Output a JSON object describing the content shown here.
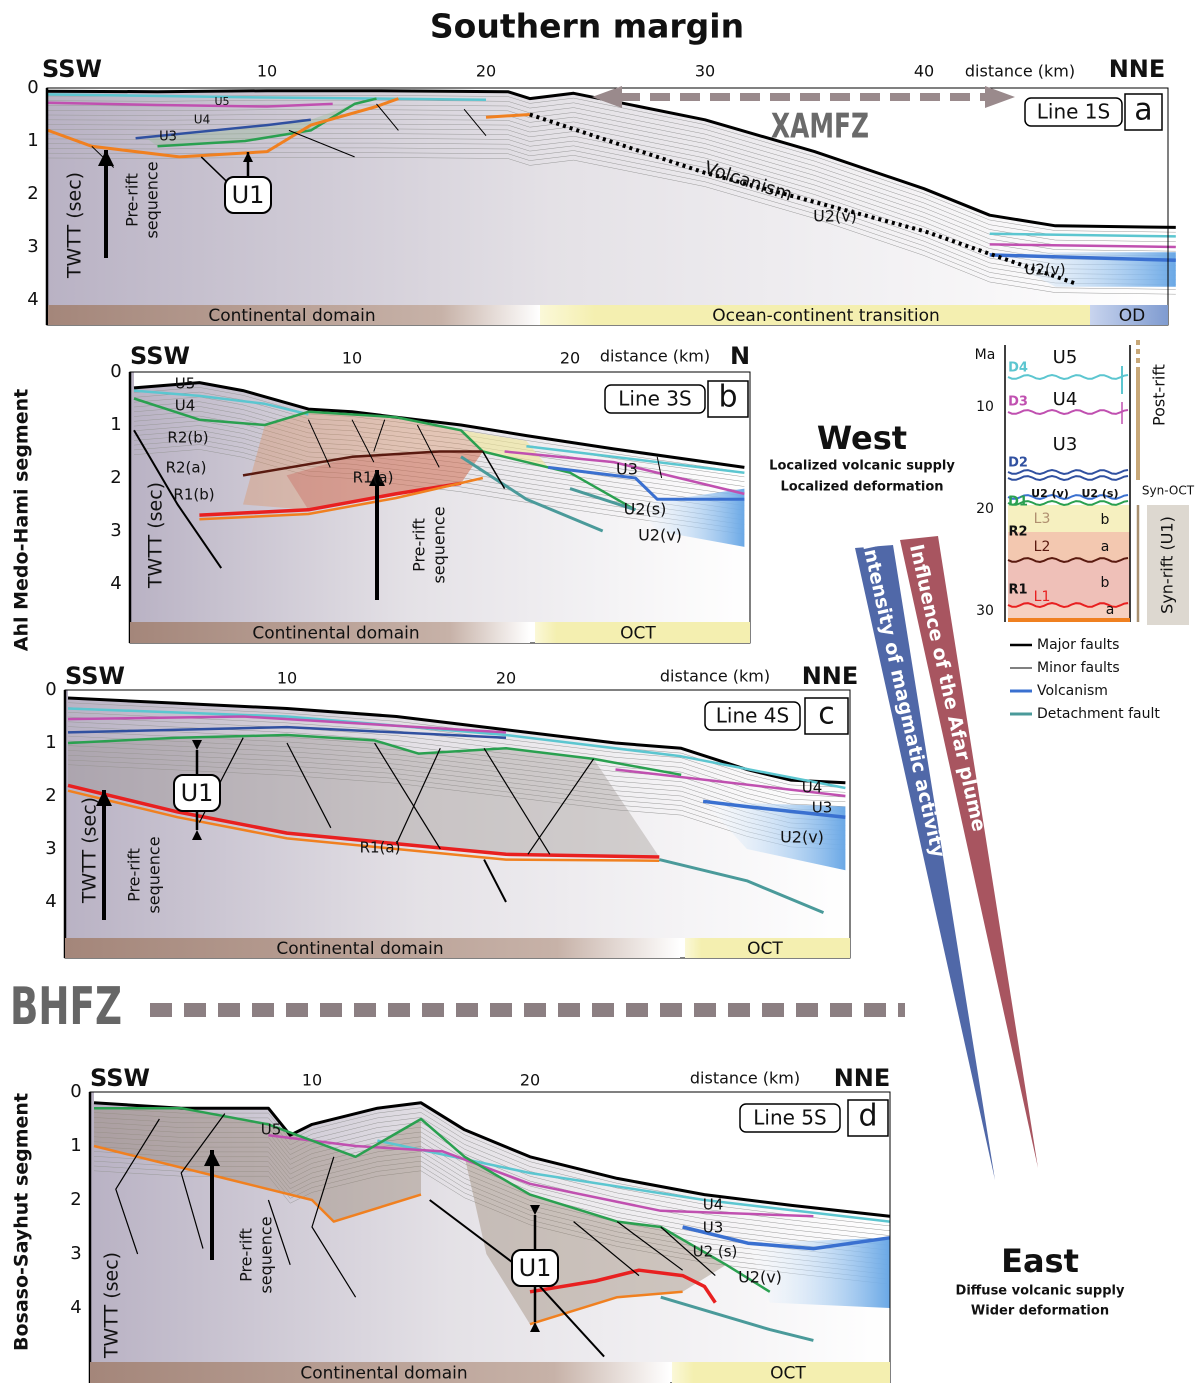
{
  "title": "Southern margin",
  "segments": [
    "Ahl Medo-Hami segment",
    "Bosaso-Sayhut segment"
  ],
  "fault_zone": "BHFZ",
  "panels": [
    {
      "left": "SSW",
      "right": "NNE",
      "distance_label": "distance (km)",
      "distance_ticks": [
        10,
        20,
        30,
        40
      ],
      "depth_ticks": [
        0,
        1,
        2,
        3,
        4
      ],
      "depth_label": "TWTT (sec)",
      "line": "Line 1S",
      "letter": "a",
      "labels": [
        "U5",
        "U4",
        "U3",
        "U1",
        "XAMFZ",
        "Volcanism",
        "U2(v)",
        "U2(v)"
      ],
      "pre_rift": [
        "Pre-rift",
        "sequence"
      ],
      "domains": [
        "Continental domain",
        "Ocean-continent transition",
        "OD"
      ]
    },
    {
      "left": "SSW",
      "right": "N",
      "distance_label": "distance (km)",
      "distance_ticks": [
        10,
        20
      ],
      "depth_ticks": [
        0,
        1,
        2,
        3,
        4
      ],
      "depth_label": "TWTT (sec)",
      "line": "Line 3S",
      "letter": "b",
      "labels": [
        "U5",
        "U4",
        "R2(b)",
        "R2(a)",
        "R1(b)",
        "R1(a)",
        "U3",
        "U2(s)",
        "U2(v)"
      ],
      "pre_rift": [
        "Pre-rift",
        "sequence"
      ],
      "domains": [
        "Continental domain",
        "OCT"
      ]
    },
    {
      "left": "SSW",
      "right": "NNE",
      "distance_label": "distance (km)",
      "distance_ticks": [
        10,
        20
      ],
      "depth_ticks": [
        0,
        1,
        2,
        3,
        4
      ],
      "depth_label": "TWTT (sec)",
      "line": "Line 4S",
      "letter": "c",
      "labels": [
        "U1",
        "R1(a)",
        "U4",
        "U3",
        "U2(v)"
      ],
      "pre_rift": [
        "Pre-rift",
        "sequence"
      ],
      "domains": [
        "Continental domain",
        "OCT"
      ]
    },
    {
      "left": "SSW",
      "right": "NNE",
      "distance_label": "distance (km)",
      "distance_ticks": [
        10,
        20
      ],
      "depth_ticks": [
        0,
        1,
        2,
        3,
        4
      ],
      "depth_label": "TWTT (sec)",
      "line": "Line 5S",
      "letter": "d",
      "labels": [
        "U5",
        "U4",
        "U3",
        "U2 (s)",
        "U2(v)",
        "U1"
      ],
      "pre_rift": [
        "Pre-rift",
        "sequence"
      ],
      "domains": [
        "Continental domain",
        "OCT"
      ]
    }
  ],
  "west": {
    "title": "West",
    "lines": [
      "Localized volcanic supply",
      "Localized deformation"
    ]
  },
  "east": {
    "title": "East",
    "lines": [
      "Diffuse volcanic supply",
      "Wider deformation"
    ]
  },
  "trends": [
    "Intensity of magmatic activity",
    "Influence of the Afar plume"
  ],
  "stratigraphy": {
    "age_label": "Ma",
    "age_ticks": [
      10,
      20,
      30
    ],
    "discontinuities": [
      "D4",
      "D3",
      "D2",
      "D1"
    ],
    "units": [
      "U5",
      "U4",
      "U3",
      "U2 (v)",
      "U2 (s)"
    ],
    "rift_units": [
      "R2",
      "R1"
    ],
    "reflectors": [
      "L3",
      "L2",
      "L1"
    ],
    "subunits": [
      "b",
      "a",
      "b",
      "a"
    ],
    "phases": [
      "Post-rift",
      "Syn-OCT",
      "Syn-rift (U1)"
    ]
  },
  "legend": [
    "Major faults",
    "Minor faults",
    "Volcanism",
    "Detachment fault"
  ]
}
